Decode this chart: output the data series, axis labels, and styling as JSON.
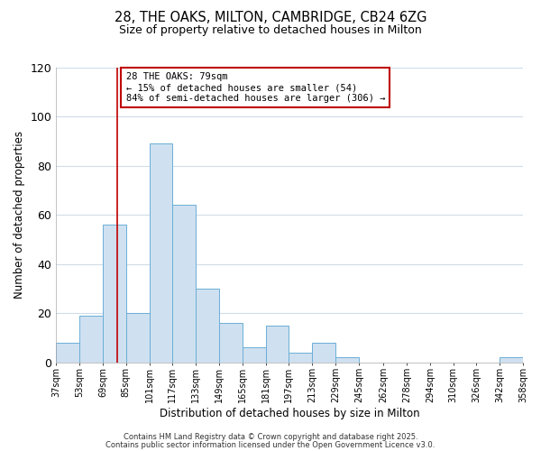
{
  "title": "28, THE OAKS, MILTON, CAMBRIDGE, CB24 6ZG",
  "subtitle": "Size of property relative to detached houses in Milton",
  "xlabel": "Distribution of detached houses by size in Milton",
  "ylabel": "Number of detached properties",
  "bin_edges": [
    37,
    53,
    69,
    85,
    101,
    117,
    133,
    149,
    165,
    181,
    197,
    213,
    229,
    245,
    262,
    278,
    294,
    310,
    326,
    342,
    358
  ],
  "bar_heights": [
    8,
    19,
    56,
    20,
    89,
    64,
    30,
    16,
    6,
    15,
    4,
    8,
    2,
    0,
    0,
    0,
    0,
    0,
    0,
    2
  ],
  "bar_color": "#cfe0f0",
  "bar_edge_color": "#6baed6",
  "ylim": [
    0,
    120
  ],
  "yticks": [
    0,
    20,
    40,
    60,
    80,
    100,
    120
  ],
  "xtick_labels": [
    "37sqm",
    "53sqm",
    "69sqm",
    "85sqm",
    "101sqm",
    "117sqm",
    "133sqm",
    "149sqm",
    "165sqm",
    "181sqm",
    "197sqm",
    "213sqm",
    "229sqm",
    "245sqm",
    "262sqm",
    "278sqm",
    "294sqm",
    "310sqm",
    "326sqm",
    "342sqm",
    "358sqm"
  ],
  "vline_x": 79,
  "vline_color": "#c00000",
  "annotation_title": "28 THE OAKS: 79sqm",
  "annotation_line1": "← 15% of detached houses are smaller (54)",
  "annotation_line2": "84% of semi-detached houses are larger (306) →",
  "annotation_box_color": "#ffffff",
  "annotation_box_edge_color": "#c00000",
  "footer1": "Contains HM Land Registry data © Crown copyright and database right 2025.",
  "footer2": "Contains public sector information licensed under the Open Government Licence v3.0.",
  "background_color": "#ffffff",
  "grid_color": "#d0dce8"
}
